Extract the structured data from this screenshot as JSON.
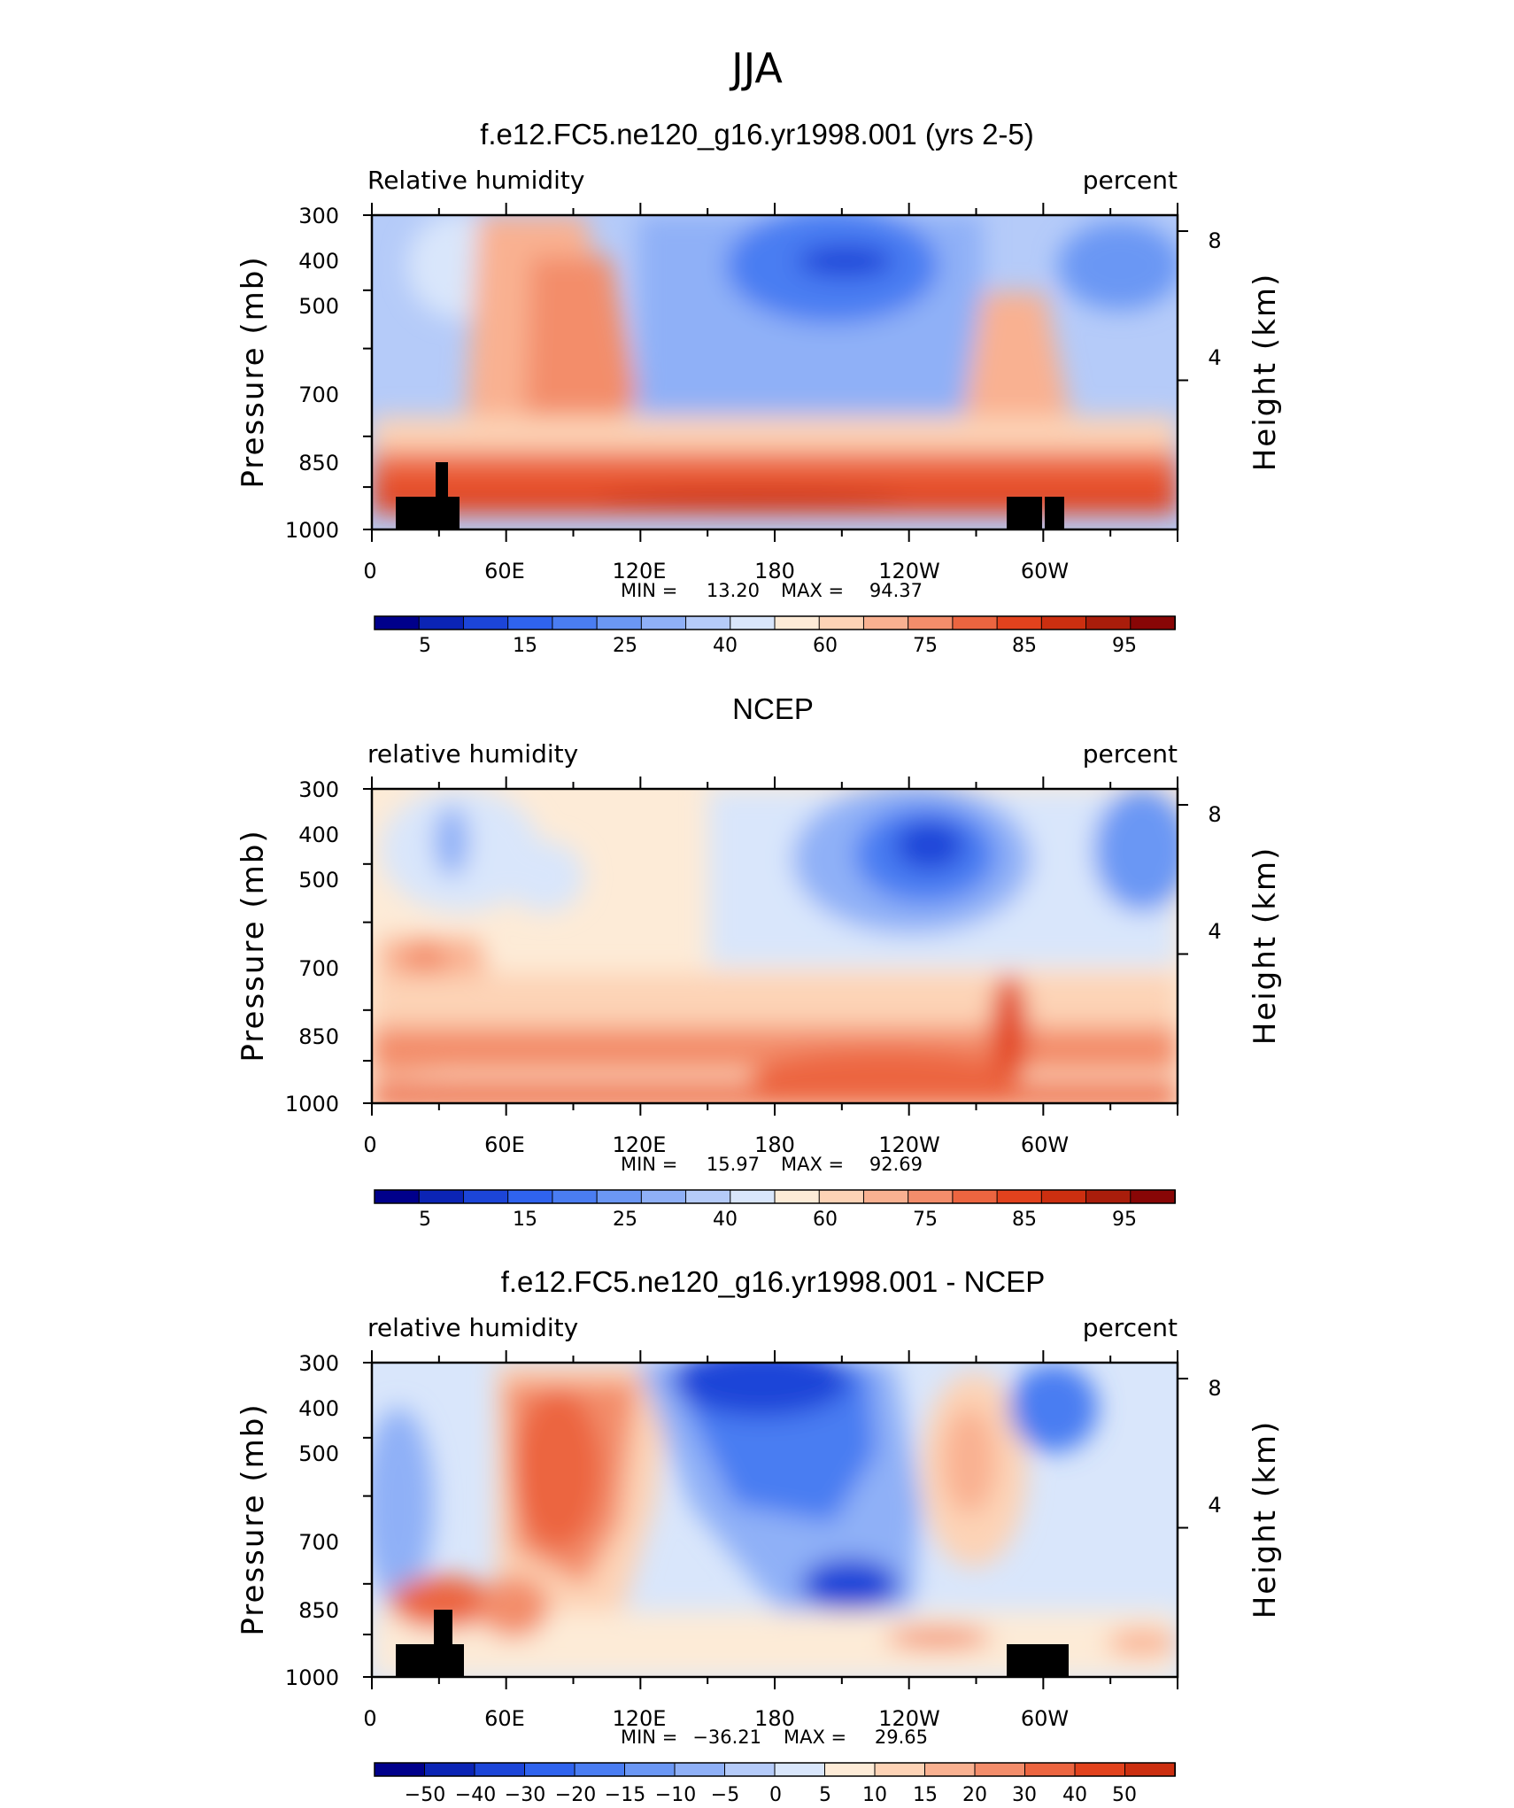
{
  "figure": {
    "title": "JJA"
  },
  "chart_data": [
    {
      "type": "heatmap",
      "title": "f.e12.FC5.ne120_g16.yr1998.001 (yrs 2-5)",
      "variable": "Relative humidity",
      "units": "percent",
      "xlabel": "",
      "ylabel": "Pressure (mb)",
      "ylabel_right": "Height (km)",
      "x_ticks": [
        "0",
        "60E",
        "120E",
        "180",
        "120W",
        "60W"
      ],
      "y_ticks": [
        "300",
        "400",
        "500",
        "700",
        "850",
        "1000"
      ],
      "y_ticks_right": [
        "8",
        "4"
      ],
      "ylim": [
        1000,
        300
      ],
      "min_label": "MIN =",
      "min": "13.20",
      "max_label": "MAX =",
      "max": "94.37",
      "colorbar_levels": [
        "5",
        "15",
        "25",
        "40",
        "60",
        "75",
        "85",
        "95"
      ],
      "colorbar_colors": [
        "#00008b",
        "#0b24b5",
        "#1c45d8",
        "#2f63ee",
        "#4a7df2",
        "#6b97f4",
        "#8fb0f7",
        "#b5cbf9",
        "#d9e6fb",
        "#fdebd7",
        "#fdd3b6",
        "#f9b191",
        "#f38d6b",
        "#ec6540",
        "#e2421d",
        "#cc2f10",
        "#a91d0b",
        "#880606"
      ]
    },
    {
      "type": "heatmap",
      "title": "NCEP",
      "variable": "relative humidity",
      "units": "percent",
      "xlabel": "",
      "ylabel": "Pressure (mb)",
      "ylabel_right": "Height (km)",
      "x_ticks": [
        "0",
        "60E",
        "120E",
        "180",
        "120W",
        "60W"
      ],
      "y_ticks": [
        "300",
        "400",
        "500",
        "700",
        "850",
        "1000"
      ],
      "y_ticks_right": [
        "8",
        "4"
      ],
      "ylim": [
        1000,
        300
      ],
      "min_label": "MIN =",
      "min": "15.97",
      "max_label": "MAX =",
      "max": "92.69",
      "colorbar_levels": [
        "5",
        "15",
        "25",
        "40",
        "60",
        "75",
        "85",
        "95"
      ],
      "colorbar_colors": [
        "#00008b",
        "#0b24b5",
        "#1c45d8",
        "#2f63ee",
        "#4a7df2",
        "#6b97f4",
        "#8fb0f7",
        "#b5cbf9",
        "#d9e6fb",
        "#fdebd7",
        "#fdd3b6",
        "#f9b191",
        "#f38d6b",
        "#ec6540",
        "#e2421d",
        "#cc2f10",
        "#a91d0b",
        "#880606"
      ]
    },
    {
      "type": "heatmap",
      "title": "f.e12.FC5.ne120_g16.yr1998.001 - NCEP",
      "variable": "relative humidity",
      "units": "percent",
      "xlabel": "",
      "ylabel": "Pressure (mb)",
      "ylabel_right": "Height (km)",
      "x_ticks": [
        "0",
        "60E",
        "120E",
        "180",
        "120W",
        "60W"
      ],
      "y_ticks": [
        "300",
        "400",
        "500",
        "700",
        "850",
        "1000"
      ],
      "y_ticks_right": [
        "8",
        "4"
      ],
      "ylim": [
        1000,
        300
      ],
      "min_label": "MIN =",
      "min": "−36.21",
      "max_label": "MAX =",
      "max": "29.65",
      "colorbar_levels": [
        "−50",
        "−40",
        "−30",
        "−20",
        "−15",
        "−10",
        "−5",
        "0",
        "5",
        "10",
        "15",
        "20",
        "30",
        "40",
        "50"
      ],
      "colorbar_colors": [
        "#00008b",
        "#0b24b5",
        "#1c45d8",
        "#2f63ee",
        "#4a7df2",
        "#6b97f4",
        "#8fb0f7",
        "#b5cbf9",
        "#d9e6fb",
        "#fdebd7",
        "#fdd3b6",
        "#f9b191",
        "#f38d6b",
        "#ec6540",
        "#e2421d",
        "#cc2f10"
      ]
    }
  ]
}
